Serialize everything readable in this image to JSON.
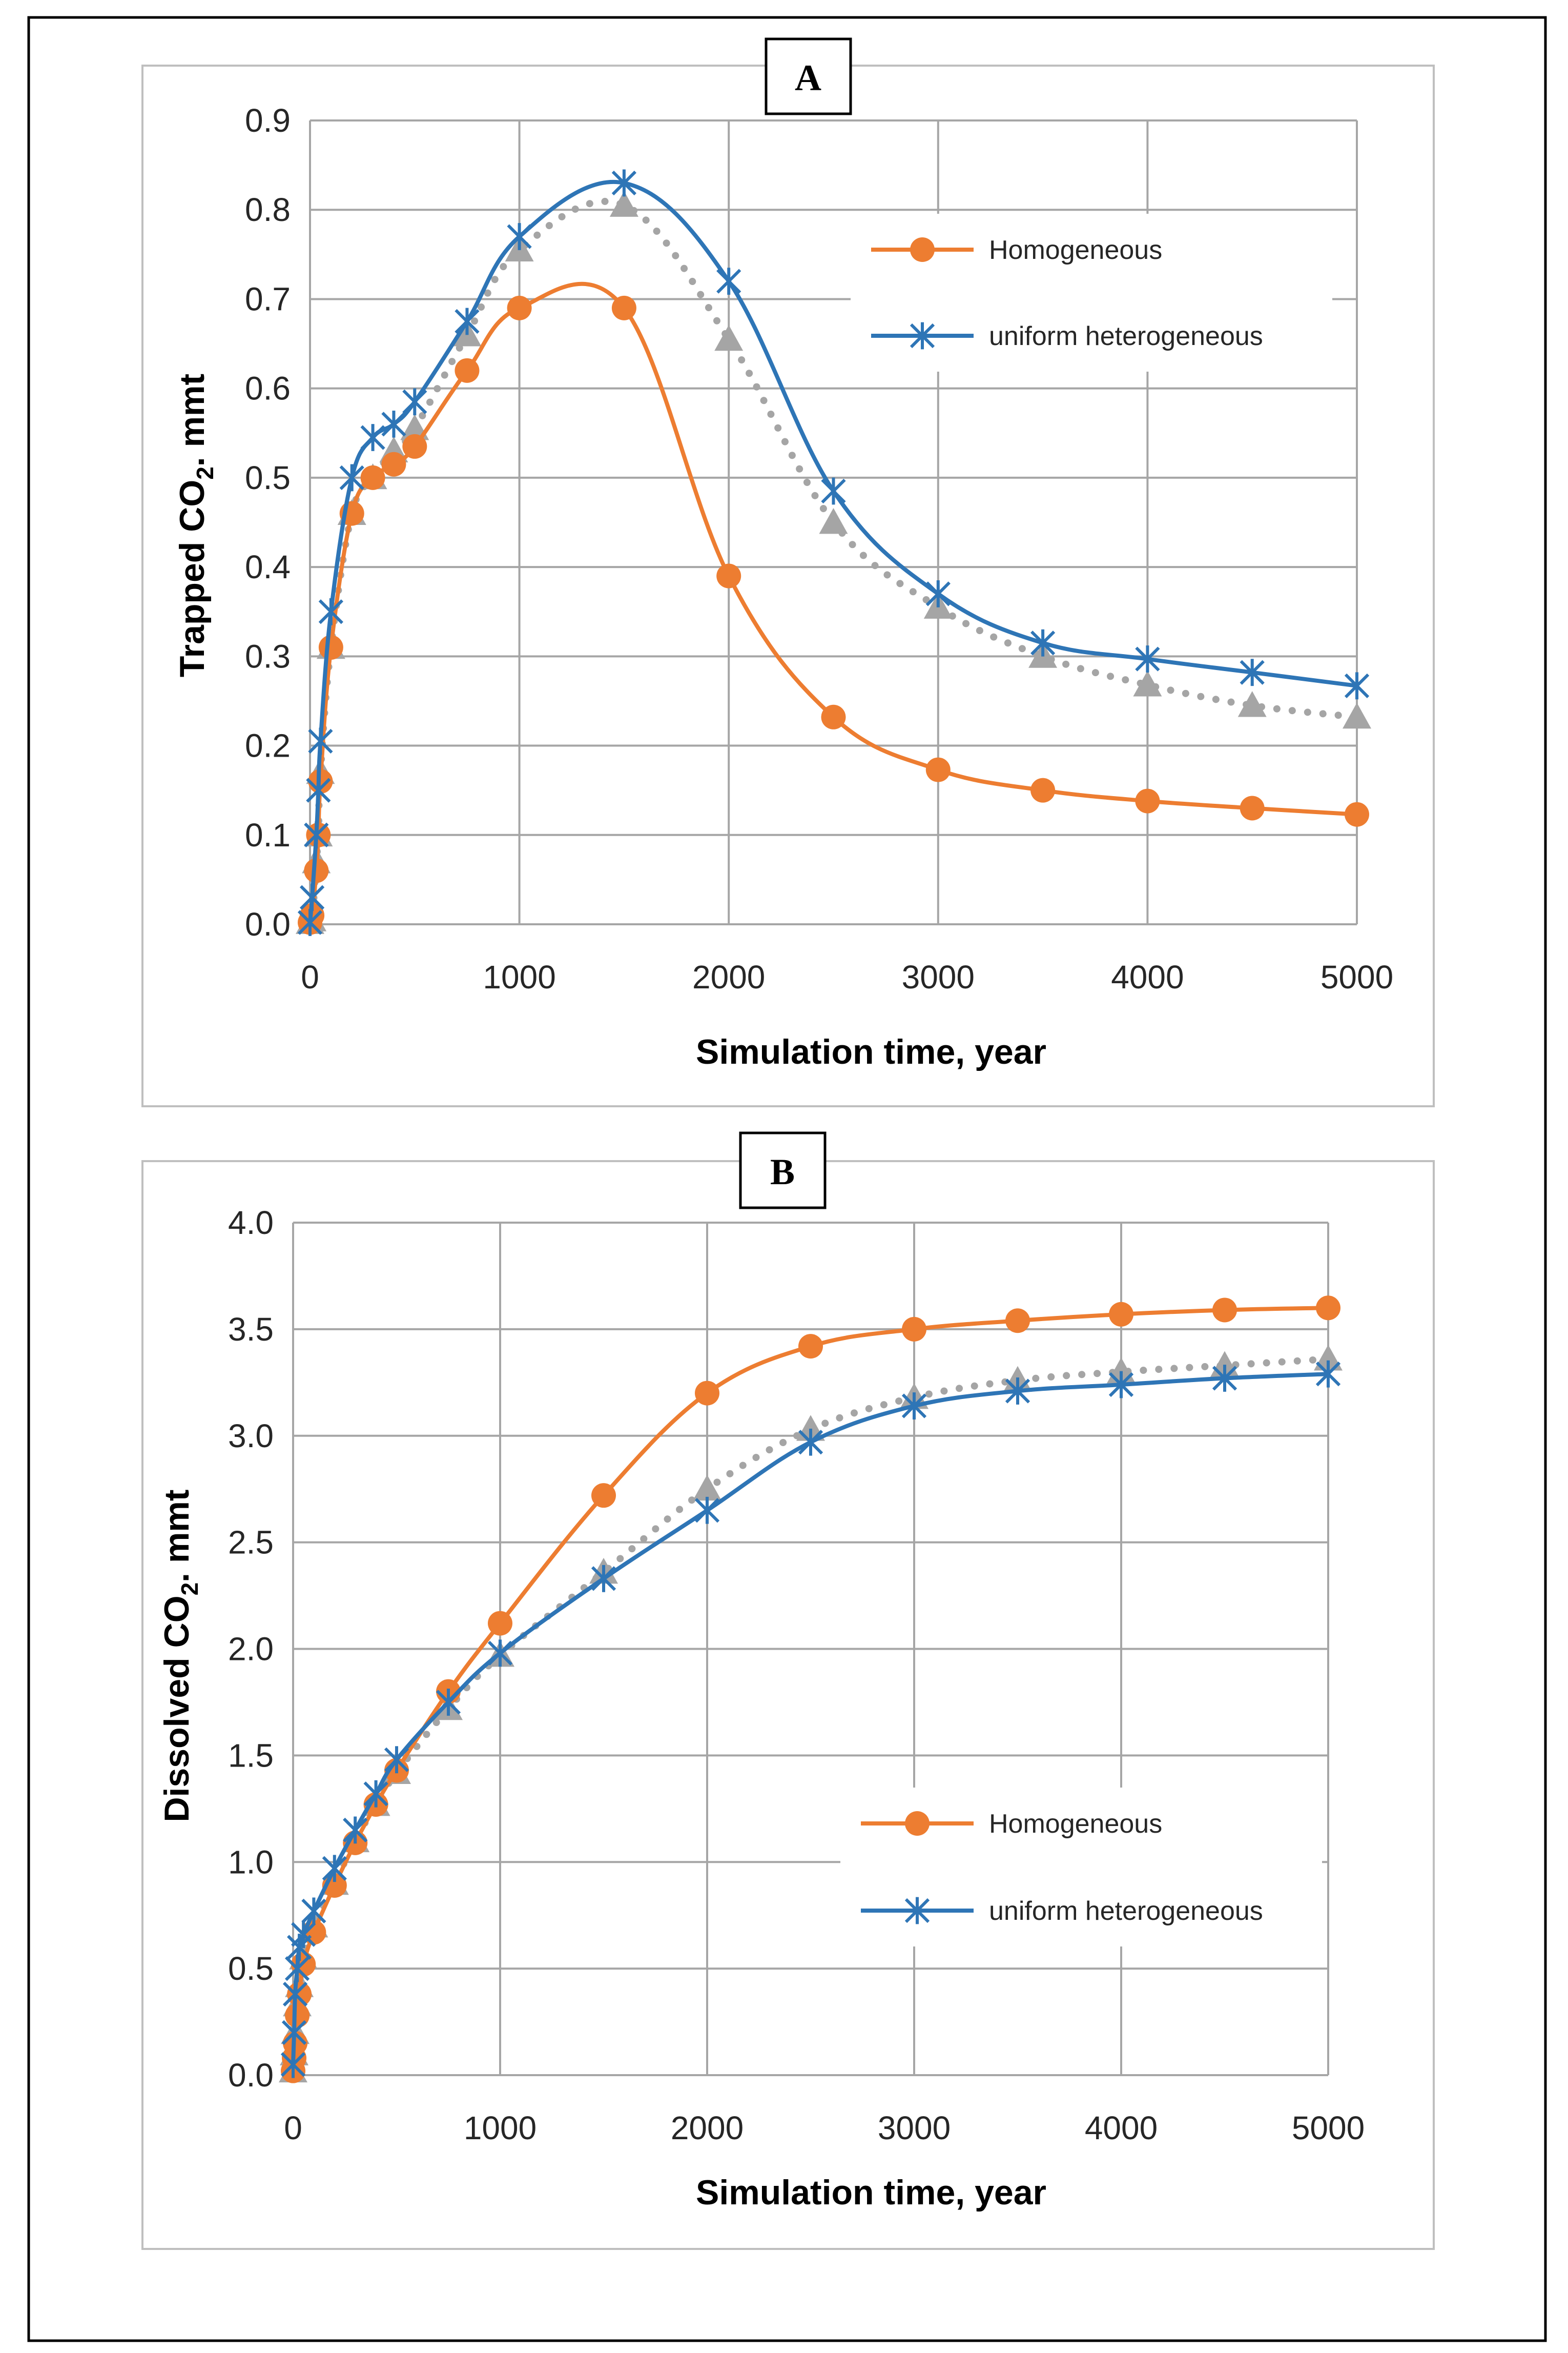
{
  "chart_data": [
    {
      "type": "line",
      "panel_label": "A",
      "xlabel": "Simulation time, year",
      "ylabel_main": "Trapped CO",
      "ylabel_sub": "2",
      "ylabel_tail": ". mmt",
      "xlim": [
        0,
        5000
      ],
      "ylim": [
        0,
        0.9
      ],
      "x_ticks": [
        "0",
        "1000",
        "2000",
        "3000",
        "4000",
        "5000"
      ],
      "y_ticks": [
        "0.0",
        "0.1",
        "0.2",
        "0.3",
        "0.4",
        "0.5",
        "0.6",
        "0.7",
        "0.8",
        "0.9"
      ],
      "grid": true,
      "legend_position": "top-right",
      "series": [
        {
          "name": "Homogeneous",
          "color": "#ED7D31",
          "marker": "circle",
          "line": "solid",
          "points": [
            [
              0,
              0.002
            ],
            [
              10,
              0.01
            ],
            [
              30,
              0.06
            ],
            [
              40,
              0.1
            ],
            [
              50,
              0.16
            ],
            [
              100,
              0.31
            ],
            [
              200,
              0.46
            ],
            [
              300,
              0.5
            ],
            [
              400,
              0.515
            ],
            [
              500,
              0.535
            ],
            [
              750,
              0.62
            ],
            [
              1000,
              0.69
            ],
            [
              1500,
              0.69
            ],
            [
              2000,
              0.39
            ],
            [
              2500,
              0.232
            ],
            [
              3000,
              0.173
            ],
            [
              3500,
              0.15
            ],
            [
              4000,
              0.138
            ],
            [
              4500,
              0.13
            ],
            [
              5000,
              0.123
            ]
          ]
        },
        {
          "name": "uniform heterogeneous",
          "color": "#2E75B6",
          "marker": "star",
          "line": "solid",
          "points": [
            [
              0,
              0.002
            ],
            [
              10,
              0.03
            ],
            [
              30,
              0.1
            ],
            [
              40,
              0.15
            ],
            [
              50,
              0.205
            ],
            [
              100,
              0.35
            ],
            [
              200,
              0.5
            ],
            [
              300,
              0.545
            ],
            [
              400,
              0.56
            ],
            [
              500,
              0.585
            ],
            [
              750,
              0.675
            ],
            [
              1000,
              0.77
            ],
            [
              1500,
              0.83
            ],
            [
              2000,
              0.72
            ],
            [
              2500,
              0.485
            ],
            [
              3000,
              0.37
            ],
            [
              3500,
              0.315
            ],
            [
              4000,
              0.297
            ],
            [
              4500,
              0.282
            ],
            [
              5000,
              0.267
            ]
          ]
        },
        {
          "name": "",
          "color": "#A5A5A5",
          "marker": "triangle",
          "line": "dotted",
          "points": [
            [
              0,
              0.002
            ],
            [
              10,
              0.005
            ],
            [
              30,
              0.07
            ],
            [
              40,
              0.1
            ],
            [
              50,
              0.17
            ],
            [
              100,
              0.31
            ],
            [
              200,
              0.46
            ],
            [
              300,
              0.5
            ],
            [
              400,
              0.53
            ],
            [
              500,
              0.555
            ],
            [
              750,
              0.66
            ],
            [
              1000,
              0.755
            ],
            [
              1500,
              0.805
            ],
            [
              2000,
              0.655
            ],
            [
              2500,
              0.45
            ],
            [
              3000,
              0.355
            ],
            [
              3500,
              0.3
            ],
            [
              4000,
              0.268
            ],
            [
              4500,
              0.245
            ],
            [
              5000,
              0.232
            ]
          ]
        }
      ]
    },
    {
      "type": "line",
      "panel_label": "B",
      "xlabel": "Simulation time, year",
      "ylabel_main": "Dissolved CO",
      "ylabel_sub": "2",
      "ylabel_tail": ". mmt",
      "xlim": [
        0,
        5000
      ],
      "ylim": [
        0,
        4.0
      ],
      "x_ticks": [
        "0",
        "1000",
        "2000",
        "3000",
        "4000",
        "5000"
      ],
      "y_ticks": [
        "0.0",
        "0.5",
        "1.0",
        "1.5",
        "2.0",
        "2.5",
        "3.0",
        "3.5",
        "4.0"
      ],
      "grid": true,
      "legend_position": "bottom-right",
      "series": [
        {
          "name": "Homogeneous",
          "color": "#ED7D31",
          "marker": "circle",
          "line": "solid",
          "points": [
            [
              0,
              0.02
            ],
            [
              5,
              0.08
            ],
            [
              10,
              0.15
            ],
            [
              20,
              0.28
            ],
            [
              30,
              0.38
            ],
            [
              50,
              0.52
            ],
            [
              100,
              0.67
            ],
            [
              200,
              0.89
            ],
            [
              300,
              1.09
            ],
            [
              400,
              1.27
            ],
            [
              500,
              1.43
            ],
            [
              750,
              1.8
            ],
            [
              1000,
              2.12
            ],
            [
              1500,
              2.72
            ],
            [
              2000,
              3.2
            ],
            [
              2500,
              3.42
            ],
            [
              3000,
              3.5
            ],
            [
              3500,
              3.54
            ],
            [
              4000,
              3.57
            ],
            [
              4500,
              3.59
            ],
            [
              5000,
              3.6
            ]
          ]
        },
        {
          "name": "uniform heterogeneous",
          "color": "#2E75B6",
          "marker": "star",
          "line": "solid",
          "points": [
            [
              0,
              0.05
            ],
            [
              5,
              0.2
            ],
            [
              10,
              0.38
            ],
            [
              20,
              0.5
            ],
            [
              30,
              0.6
            ],
            [
              50,
              0.66
            ],
            [
              100,
              0.77
            ],
            [
              200,
              0.97
            ],
            [
              300,
              1.15
            ],
            [
              400,
              1.32
            ],
            [
              500,
              1.48
            ],
            [
              750,
              1.75
            ],
            [
              1000,
              1.98
            ],
            [
              1500,
              2.33
            ],
            [
              2000,
              2.65
            ],
            [
              2500,
              2.97
            ],
            [
              3000,
              3.14
            ],
            [
              3500,
              3.21
            ],
            [
              4000,
              3.24
            ],
            [
              4500,
              3.27
            ],
            [
              5000,
              3.29
            ]
          ]
        },
        {
          "name": "",
          "color": "#A5A5A5",
          "marker": "triangle",
          "line": "dotted",
          "points": [
            [
              0,
              0.02
            ],
            [
              5,
              0.1
            ],
            [
              10,
              0.2
            ],
            [
              20,
              0.33
            ],
            [
              30,
              0.42
            ],
            [
              50,
              0.55
            ],
            [
              100,
              0.7
            ],
            [
              200,
              0.9
            ],
            [
              300,
              1.1
            ],
            [
              400,
              1.27
            ],
            [
              500,
              1.42
            ],
            [
              750,
              1.72
            ],
            [
              1000,
              1.97
            ],
            [
              1500,
              2.36
            ],
            [
              2000,
              2.75
            ],
            [
              2500,
              3.03
            ],
            [
              3000,
              3.18
            ],
            [
              3500,
              3.26
            ],
            [
              4000,
              3.3
            ],
            [
              4500,
              3.33
            ],
            [
              5000,
              3.36
            ]
          ]
        }
      ]
    }
  ]
}
